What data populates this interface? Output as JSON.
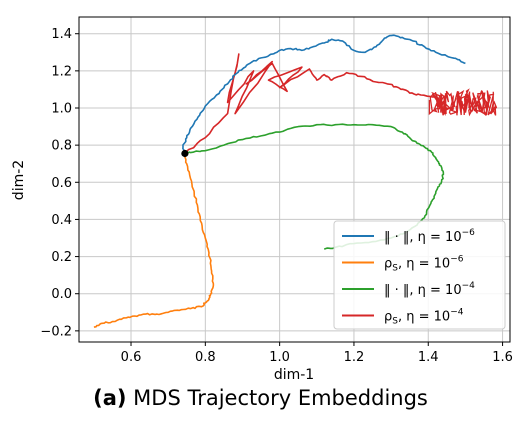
{
  "chart_data": {
    "type": "line",
    "title": "",
    "xlabel": "dim-1",
    "ylabel": "dim-2",
    "xlim": [
      0.46,
      1.62
    ],
    "ylim": [
      -0.26,
      1.49
    ],
    "x_ticks": [
      "0.6",
      "0.8",
      "1.0",
      "1.2",
      "1.4",
      "1.6"
    ],
    "y_ticks": [
      "−0.2",
      "0.0",
      "0.2",
      "0.4",
      "0.6",
      "0.8",
      "1.0",
      "1.2",
      "1.4"
    ],
    "grid": true,
    "legend_position": "lower-right",
    "start_point": {
      "x": 0.745,
      "y": 0.755
    },
    "series": [
      {
        "name": "‖ · ‖, η = 10⁻⁶",
        "legend_main": "‖ · ‖, η = 10",
        "legend_exp": "−6",
        "color": "#1f77b4",
        "x": [
          0.745,
          0.74,
          0.75,
          0.76,
          0.78,
          0.8,
          0.83,
          0.86,
          0.88,
          0.9,
          0.92,
          0.95,
          0.98,
          1.0,
          1.03,
          1.06,
          1.09,
          1.12,
          1.14,
          1.17,
          1.2,
          1.23,
          1.26,
          1.28,
          1.3,
          1.33,
          1.36,
          1.39,
          1.42,
          1.45,
          1.48,
          1.5
        ],
        "y": [
          0.755,
          0.79,
          0.84,
          0.89,
          0.95,
          1.01,
          1.07,
          1.13,
          1.18,
          1.21,
          1.24,
          1.27,
          1.29,
          1.31,
          1.32,
          1.31,
          1.33,
          1.35,
          1.37,
          1.36,
          1.31,
          1.3,
          1.33,
          1.37,
          1.39,
          1.38,
          1.36,
          1.33,
          1.3,
          1.28,
          1.26,
          1.24
        ]
      },
      {
        "name": "ρS, η = 10⁻⁶",
        "legend_main": "ρ",
        "legend_sub": "S",
        "legend_tail": ", η = 10",
        "legend_exp": "−6",
        "color": "#ff7f0e",
        "x": [
          0.745,
          0.75,
          0.76,
          0.77,
          0.78,
          0.79,
          0.8,
          0.81,
          0.815,
          0.82,
          0.82,
          0.815,
          0.81,
          0.8,
          0.79,
          0.76,
          0.73,
          0.7,
          0.67,
          0.64,
          0.61,
          0.58,
          0.55,
          0.52,
          0.5
        ],
        "y": [
          0.755,
          0.7,
          0.62,
          0.54,
          0.46,
          0.38,
          0.3,
          0.22,
          0.15,
          0.08,
          0.03,
          0.0,
          -0.03,
          -0.05,
          -0.07,
          -0.08,
          -0.09,
          -0.1,
          -0.11,
          -0.11,
          -0.12,
          -0.13,
          -0.15,
          -0.16,
          -0.18
        ]
      },
      {
        "name": "‖ · ‖, η = 10⁻⁴",
        "legend_main": "‖ · ‖, η = 10",
        "legend_exp": "−4",
        "color": "#2ca02c",
        "x": [
          0.745,
          0.76,
          0.8,
          0.85,
          0.9,
          0.95,
          1.0,
          1.05,
          1.1,
          1.15,
          1.2,
          1.25,
          1.3,
          1.33,
          1.35,
          1.37,
          1.39,
          1.41,
          1.42,
          1.43,
          1.44,
          1.44,
          1.43,
          1.42,
          1.41,
          1.4,
          1.39,
          1.37,
          1.34,
          1.3,
          1.25,
          1.2,
          1.15,
          1.12
        ],
        "y": [
          0.755,
          0.76,
          0.77,
          0.8,
          0.83,
          0.85,
          0.87,
          0.9,
          0.91,
          0.91,
          0.91,
          0.91,
          0.9,
          0.87,
          0.84,
          0.81,
          0.79,
          0.76,
          0.73,
          0.7,
          0.66,
          0.62,
          0.58,
          0.54,
          0.5,
          0.46,
          0.41,
          0.37,
          0.33,
          0.3,
          0.28,
          0.27,
          0.25,
          0.24
        ]
      },
      {
        "name": "ρS, η = 10⁻⁴",
        "legend_main": "ρ",
        "legend_sub": "S",
        "legend_tail": ", η = 10",
        "legend_exp": "−4",
        "color": "#d62728",
        "x": [
          0.745,
          0.8,
          0.86,
          0.89,
          0.86,
          0.93,
          0.88,
          0.98,
          0.91,
          0.98,
          1.02,
          0.97,
          1.06,
          1.0,
          1.08,
          1.1,
          1.12,
          1.14,
          1.18,
          1.22,
          1.26,
          1.29,
          1.32,
          1.35,
          1.38,
          1.42
        ],
        "y": [
          0.755,
          0.84,
          0.97,
          1.29,
          1.03,
          1.2,
          0.97,
          1.25,
          1.13,
          1.24,
          1.09,
          1.15,
          1.22,
          1.11,
          1.21,
          1.15,
          1.18,
          1.15,
          1.19,
          1.17,
          1.14,
          1.13,
          1.11,
          1.08,
          1.07,
          1.06
        ]
      }
    ],
    "oscillation_cluster": {
      "series_index": 3,
      "x_range": [
        1.41,
        1.58
      ],
      "y_range": [
        0.96,
        1.1
      ]
    }
  },
  "caption": {
    "label": "(a)",
    "text": " MDS Trajectory Embeddings"
  }
}
